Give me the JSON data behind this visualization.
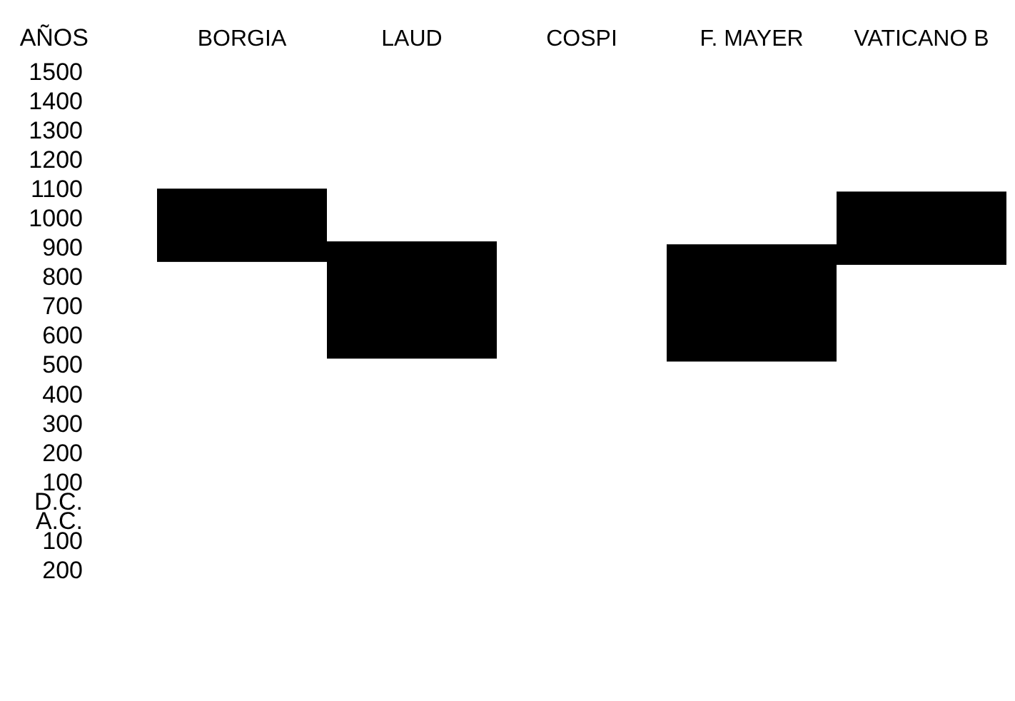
{
  "chart_data": {
    "type": "bar",
    "ylabel": "AÑOS",
    "categories": [
      "BORGIA",
      "LAUD",
      "COSPI",
      "F. MAYER",
      "VATICANO B"
    ],
    "base": [
      850,
      520,
      null,
      510,
      840
    ],
    "values": [
      250,
      400,
      null,
      400,
      250
    ],
    "color": "#000000",
    "ylim": [
      -200,
      1500
    ],
    "yticks": [
      1500,
      1400,
      1300,
      1200,
      1100,
      1000,
      900,
      800,
      700,
      600,
      500,
      400,
      300,
      200,
      100,
      {
        "value": -100,
        "label": "100"
      },
      {
        "value": -200,
        "label": "200"
      }
    ],
    "annotations": [
      "D.C.",
      "A.C."
    ],
    "grid": false
  }
}
